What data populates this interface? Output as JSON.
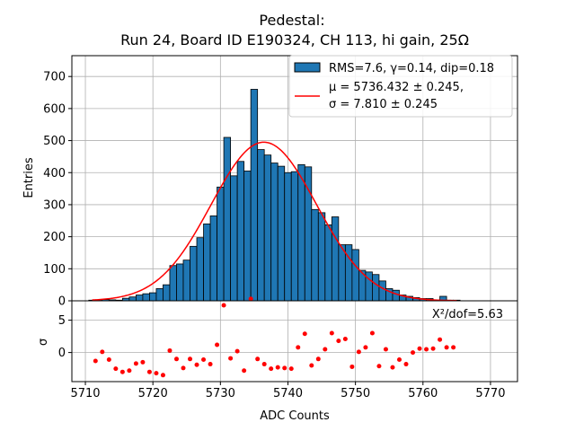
{
  "chart_data": {
    "type": "bar",
    "title": "Pedestal:",
    "subtitle": "Run 24, Board ID E190324, CH 113, hi gain, 25Ω",
    "xlabel": "ADC Counts",
    "ylabel_top": "Entries",
    "ylabel_bottom": "σ",
    "xlim": [
      5708,
      5774
    ],
    "ylim_top": [
      0,
      765
    ],
    "ylim_bottom": [
      -4.5,
      8
    ],
    "x_ticks": [
      5710,
      5720,
      5730,
      5740,
      5750,
      5760,
      5770
    ],
    "y_ticks_top": [
      0,
      100,
      200,
      300,
      400,
      500,
      600,
      700
    ],
    "y_ticks_bottom": [
      0,
      5
    ],
    "grid": true,
    "legend_position": "top-right",
    "legend": {
      "hist_label": "RMS=7.6, γ=0.14, dip=0.18",
      "fit_label_line1": "μ = 5736.432 ± 0.245,",
      "fit_label_line2": "σ = 7.810 ± 0.245"
    },
    "annotation": "X²/dof=5.63",
    "bar_width": 1,
    "hist_color": "#1f77b4",
    "fit_color": "#ff0000",
    "residual_color": "#ff0000",
    "bars": [
      {
        "x": 5711,
        "y": 2
      },
      {
        "x": 5712,
        "y": 3
      },
      {
        "x": 5713,
        "y": 4
      },
      {
        "x": 5714,
        "y": 3
      },
      {
        "x": 5715,
        "y": 2
      },
      {
        "x": 5716,
        "y": 8
      },
      {
        "x": 5717,
        "y": 12
      },
      {
        "x": 5718,
        "y": 18
      },
      {
        "x": 5719,
        "y": 22
      },
      {
        "x": 5720,
        "y": 25
      },
      {
        "x": 5721,
        "y": 38
      },
      {
        "x": 5722,
        "y": 50
      },
      {
        "x": 5723,
        "y": 110
      },
      {
        "x": 5724,
        "y": 115
      },
      {
        "x": 5725,
        "y": 127
      },
      {
        "x": 5726,
        "y": 170
      },
      {
        "x": 5727,
        "y": 197
      },
      {
        "x": 5728,
        "y": 240
      },
      {
        "x": 5729,
        "y": 265
      },
      {
        "x": 5730,
        "y": 355
      },
      {
        "x": 5731,
        "y": 510
      },
      {
        "x": 5732,
        "y": 390
      },
      {
        "x": 5733,
        "y": 435
      },
      {
        "x": 5734,
        "y": 405
      },
      {
        "x": 5735,
        "y": 660
      },
      {
        "x": 5736,
        "y": 472
      },
      {
        "x": 5737,
        "y": 455
      },
      {
        "x": 5738,
        "y": 430
      },
      {
        "x": 5739,
        "y": 420
      },
      {
        "x": 5740,
        "y": 400
      },
      {
        "x": 5741,
        "y": 403
      },
      {
        "x": 5742,
        "y": 425
      },
      {
        "x": 5743,
        "y": 418
      },
      {
        "x": 5744,
        "y": 285
      },
      {
        "x": 5745,
        "y": 275
      },
      {
        "x": 5746,
        "y": 237
      },
      {
        "x": 5747,
        "y": 262
      },
      {
        "x": 5748,
        "y": 175
      },
      {
        "x": 5749,
        "y": 175
      },
      {
        "x": 5750,
        "y": 160
      },
      {
        "x": 5751,
        "y": 95
      },
      {
        "x": 5752,
        "y": 90
      },
      {
        "x": 5753,
        "y": 82
      },
      {
        "x": 5754,
        "y": 62
      },
      {
        "x": 5755,
        "y": 38
      },
      {
        "x": 5756,
        "y": 33
      },
      {
        "x": 5757,
        "y": 18
      },
      {
        "x": 5758,
        "y": 14
      },
      {
        "x": 5759,
        "y": 10
      },
      {
        "x": 5760,
        "y": 7
      },
      {
        "x": 5761,
        "y": 7
      },
      {
        "x": 5762,
        "y": 3
      },
      {
        "x": 5763,
        "y": 14
      },
      {
        "x": 5764,
        "y": 2
      },
      {
        "x": 5765,
        "y": 2
      }
    ],
    "fit": {
      "mu": 5736.432,
      "sigma": 7.81,
      "amplitude": 495,
      "x_range": [
        5711,
        5765
      ]
    },
    "residuals": [
      {
        "x": 5711.5,
        "y": -1.3
      },
      {
        "x": 5712.5,
        "y": 0.1
      },
      {
        "x": 5713.5,
        "y": -1.1
      },
      {
        "x": 5714.5,
        "y": -2.5
      },
      {
        "x": 5715.5,
        "y": -3.0
      },
      {
        "x": 5716.5,
        "y": -2.8
      },
      {
        "x": 5717.5,
        "y": -1.7
      },
      {
        "x": 5718.5,
        "y": -1.5
      },
      {
        "x": 5719.5,
        "y": -3.0
      },
      {
        "x": 5720.5,
        "y": -3.2
      },
      {
        "x": 5721.5,
        "y": -3.5
      },
      {
        "x": 5722.5,
        "y": 0.3
      },
      {
        "x": 5723.5,
        "y": -1.0
      },
      {
        "x": 5724.5,
        "y": -2.4
      },
      {
        "x": 5725.5,
        "y": -1.0
      },
      {
        "x": 5726.5,
        "y": -1.9
      },
      {
        "x": 5727.5,
        "y": -1.1
      },
      {
        "x": 5728.5,
        "y": -1.8
      },
      {
        "x": 5729.5,
        "y": 1.2
      },
      {
        "x": 5730.5,
        "y": 7.3
      },
      {
        "x": 5731.5,
        "y": -0.9
      },
      {
        "x": 5732.5,
        "y": 0.2
      },
      {
        "x": 5733.5,
        "y": -2.8
      },
      {
        "x": 5734.5,
        "y": 8.3
      },
      {
        "x": 5735.5,
        "y": -1.0
      },
      {
        "x": 5736.5,
        "y": -1.8
      },
      {
        "x": 5737.5,
        "y": -2.5
      },
      {
        "x": 5738.5,
        "y": -2.3
      },
      {
        "x": 5739.5,
        "y": -2.4
      },
      {
        "x": 5740.5,
        "y": -2.5
      },
      {
        "x": 5741.5,
        "y": 0.8
      },
      {
        "x": 5742.5,
        "y": 2.9
      },
      {
        "x": 5743.5,
        "y": -2.0
      },
      {
        "x": 5744.5,
        "y": -1.0
      },
      {
        "x": 5745.5,
        "y": 0.5
      },
      {
        "x": 5746.5,
        "y": 3.0
      },
      {
        "x": 5747.5,
        "y": 1.8
      },
      {
        "x": 5748.5,
        "y": 2.1
      },
      {
        "x": 5749.5,
        "y": -2.2
      },
      {
        "x": 5750.5,
        "y": 0.1
      },
      {
        "x": 5751.5,
        "y": 0.8
      },
      {
        "x": 5752.5,
        "y": 3.0
      },
      {
        "x": 5753.5,
        "y": -2.1
      },
      {
        "x": 5754.5,
        "y": 0.5
      },
      {
        "x": 5755.5,
        "y": -2.3
      },
      {
        "x": 5756.5,
        "y": -1.1
      },
      {
        "x": 5757.5,
        "y": -1.8
      },
      {
        "x": 5758.5,
        "y": 0.0
      },
      {
        "x": 5759.5,
        "y": 0.6
      },
      {
        "x": 5760.5,
        "y": 0.5
      },
      {
        "x": 5761.5,
        "y": 0.6
      },
      {
        "x": 5762.5,
        "y": 2.0
      },
      {
        "x": 5763.5,
        "y": 0.8
      },
      {
        "x": 5764.5,
        "y": 0.8
      }
    ]
  }
}
